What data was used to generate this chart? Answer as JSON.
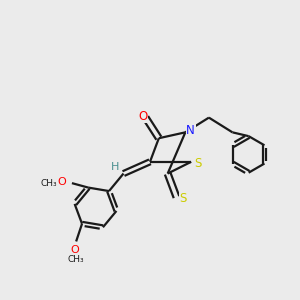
{
  "background_color": "#ebebeb",
  "bond_color": "#1a1a1a",
  "atom_colors": {
    "O": "#ff0000",
    "N": "#1a1aff",
    "S": "#cccc00",
    "H": "#4a9090",
    "C": "#1a1a1a"
  },
  "font_size": 8.5,
  "line_width": 1.6,
  "figsize": [
    3.0,
    3.0
  ],
  "dpi": 100
}
